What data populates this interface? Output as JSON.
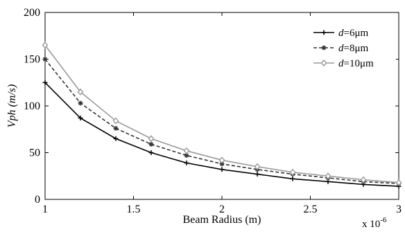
{
  "chart_data": {
    "type": "line",
    "title": "",
    "xlabel": "Beam Radius (m)",
    "ylabel": "Vph (m/s)",
    "x_multiplier_label": "x 10",
    "x_multiplier_exp": "-6",
    "xlim": [
      1,
      3
    ],
    "ylim": [
      0,
      200
    ],
    "xticks": [
      1,
      1.5,
      2,
      2.5,
      3
    ],
    "xtick_labels": [
      "1",
      "1.5",
      "2",
      "2.5",
      "3"
    ],
    "yticks": [
      0,
      50,
      100,
      150,
      200
    ],
    "ytick_labels": [
      "0",
      "50",
      "100",
      "150",
      "200"
    ],
    "grid": false,
    "legend_position": "top-right",
    "x": [
      1.0,
      1.2,
      1.4,
      1.6,
      1.8,
      2.0,
      2.2,
      2.4,
      2.6,
      2.8,
      3.0
    ],
    "series": [
      {
        "name": "d=6μm",
        "legend_italic": "d",
        "legend_rest": "=6μm",
        "color": "#000000",
        "dash": "solid",
        "marker": "plus",
        "values": [
          125,
          87,
          65,
          50,
          39,
          32,
          27,
          22,
          19,
          16,
          14
        ]
      },
      {
        "name": "d=8μm",
        "legend_italic": "d",
        "legend_rest": "=8μm",
        "color": "#333333",
        "dash": "dashed",
        "marker": "star",
        "values": [
          150,
          103,
          76,
          59,
          47,
          38,
          32,
          27,
          23,
          19,
          17
        ]
      },
      {
        "name": "d=10μm",
        "legend_italic": "d",
        "legend_rest": "=10μm",
        "color": "#9a9a9a",
        "dash": "solid",
        "marker": "diamond",
        "values": [
          165,
          115,
          84,
          65,
          52,
          42,
          35,
          29,
          25,
          21,
          18
        ]
      }
    ]
  }
}
